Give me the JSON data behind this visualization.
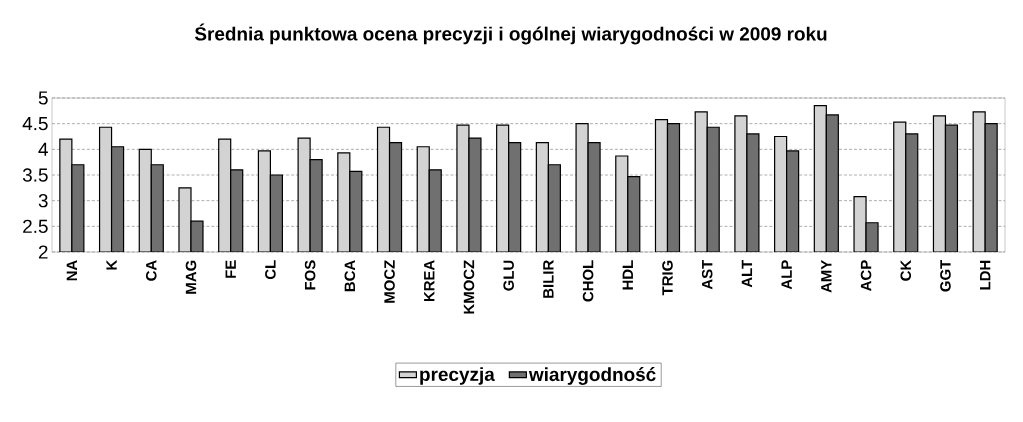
{
  "chart_data": {
    "type": "bar",
    "title": "Średnia punktowa ocena precyzji i ogólnej wiarygodności w 2009 roku",
    "categories": [
      "NA",
      "K",
      "CA",
      "MAG",
      "FE",
      "CL",
      "FOS",
      "BCA",
      "MOCZ",
      "KREA",
      "KMOCZ",
      "GLU",
      "BILIR",
      "CHOL",
      "HDL",
      "TRIG",
      "AST",
      "ALT",
      "ALP",
      "AMY",
      "ACP",
      "CK",
      "GGT",
      "LDH"
    ],
    "series": [
      {
        "name": "precyzja",
        "color": "#d3d3d3",
        "values": [
          4.2,
          4.43,
          4.0,
          3.25,
          4.2,
          3.97,
          4.22,
          3.93,
          4.43,
          4.05,
          4.47,
          4.47,
          4.13,
          4.5,
          3.87,
          4.58,
          4.73,
          4.65,
          4.25,
          4.85,
          3.08,
          4.53,
          4.65,
          4.73
        ]
      },
      {
        "name": "wiarygodność",
        "color": "#707070",
        "values": [
          3.7,
          4.05,
          3.7,
          2.6,
          3.6,
          3.5,
          3.8,
          3.57,
          4.13,
          3.6,
          4.22,
          4.13,
          3.7,
          4.13,
          3.47,
          4.5,
          4.43,
          4.3,
          3.97,
          4.67,
          2.57,
          4.3,
          4.47,
          4.5
        ]
      }
    ],
    "ylim": [
      2,
      5
    ],
    "yticks": [
      2,
      2.5,
      3,
      3.5,
      4,
      4.5,
      5
    ],
    "grid": "y",
    "legend": "bottom"
  }
}
